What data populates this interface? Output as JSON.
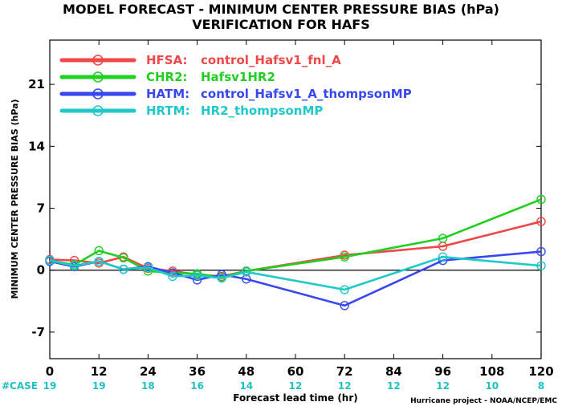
{
  "chart_data": {
    "type": "line",
    "title": "MODEL FORECAST - MINIMUM CENTER PRESSURE BIAS (hPa)",
    "subtitle": "VERIFICATION FOR HAFS",
    "xlabel": "Forecast lead time (hr)",
    "ylabel": "MINIMUM CENTER PRESSURE BIAS (hPa)",
    "xlim": [
      0,
      120
    ],
    "ylim": [
      -10,
      26
    ],
    "xticks": [
      0,
      12,
      24,
      36,
      48,
      60,
      72,
      84,
      96,
      108,
      120
    ],
    "yticks": [
      -7,
      0,
      7,
      14,
      21
    ],
    "zero_line": true,
    "legend_position": "top-left",
    "case_label": "#CASE",
    "case_color": "#20c0c0",
    "case_x": [
      0,
      12,
      24,
      36,
      48,
      60,
      72,
      84,
      96,
      108,
      120
    ],
    "case_counts": [
      19,
      19,
      18,
      16,
      14,
      12,
      12,
      12,
      12,
      10,
      8
    ],
    "credit": "Hurricane project - NOAA/NCEP/EMC",
    "series": [
      {
        "code": "HFSA:",
        "name": "control_Hafsv1_fnl_A",
        "color": "#f04848",
        "x": [
          0,
          6,
          12,
          18,
          24,
          30,
          36,
          42,
          48,
          72,
          96,
          120
        ],
        "values": [
          1.2,
          1.1,
          0.8,
          1.5,
          0.2,
          -0.1,
          -0.5,
          -0.7,
          -0.1,
          1.7,
          2.7,
          5.5
        ]
      },
      {
        "code": "CHR2:",
        "name": "Hafsv1HR2",
        "color": "#20d020",
        "x": [
          0,
          6,
          12,
          18,
          24,
          30,
          36,
          42,
          48,
          72,
          96,
          120
        ],
        "values": [
          1.1,
          0.6,
          2.2,
          1.4,
          -0.1,
          -0.3,
          -0.4,
          -0.8,
          -0.1,
          1.5,
          3.6,
          8.0
        ]
      },
      {
        "code": "HATM:",
        "name": "control_Hafsv1_A_thompsonMP",
        "color": "#3848f0",
        "x": [
          0,
          6,
          12,
          18,
          24,
          30,
          36,
          42,
          48,
          72,
          96,
          120
        ],
        "values": [
          1.0,
          0.4,
          1.0,
          0.1,
          0.4,
          -0.3,
          -1.1,
          -0.5,
          -1.0,
          -4.0,
          1.1,
          2.1
        ]
      },
      {
        "code": "HRTM:",
        "name": "HR2_thompsonMP",
        "color": "#20c8c8",
        "x": [
          0,
          6,
          12,
          18,
          24,
          30,
          36,
          42,
          48,
          72,
          96,
          120
        ],
        "values": [
          1.1,
          0.5,
          1.0,
          0.1,
          0.3,
          -0.7,
          -0.6,
          -0.9,
          -0.2,
          -2.2,
          1.5,
          0.5
        ]
      }
    ]
  }
}
